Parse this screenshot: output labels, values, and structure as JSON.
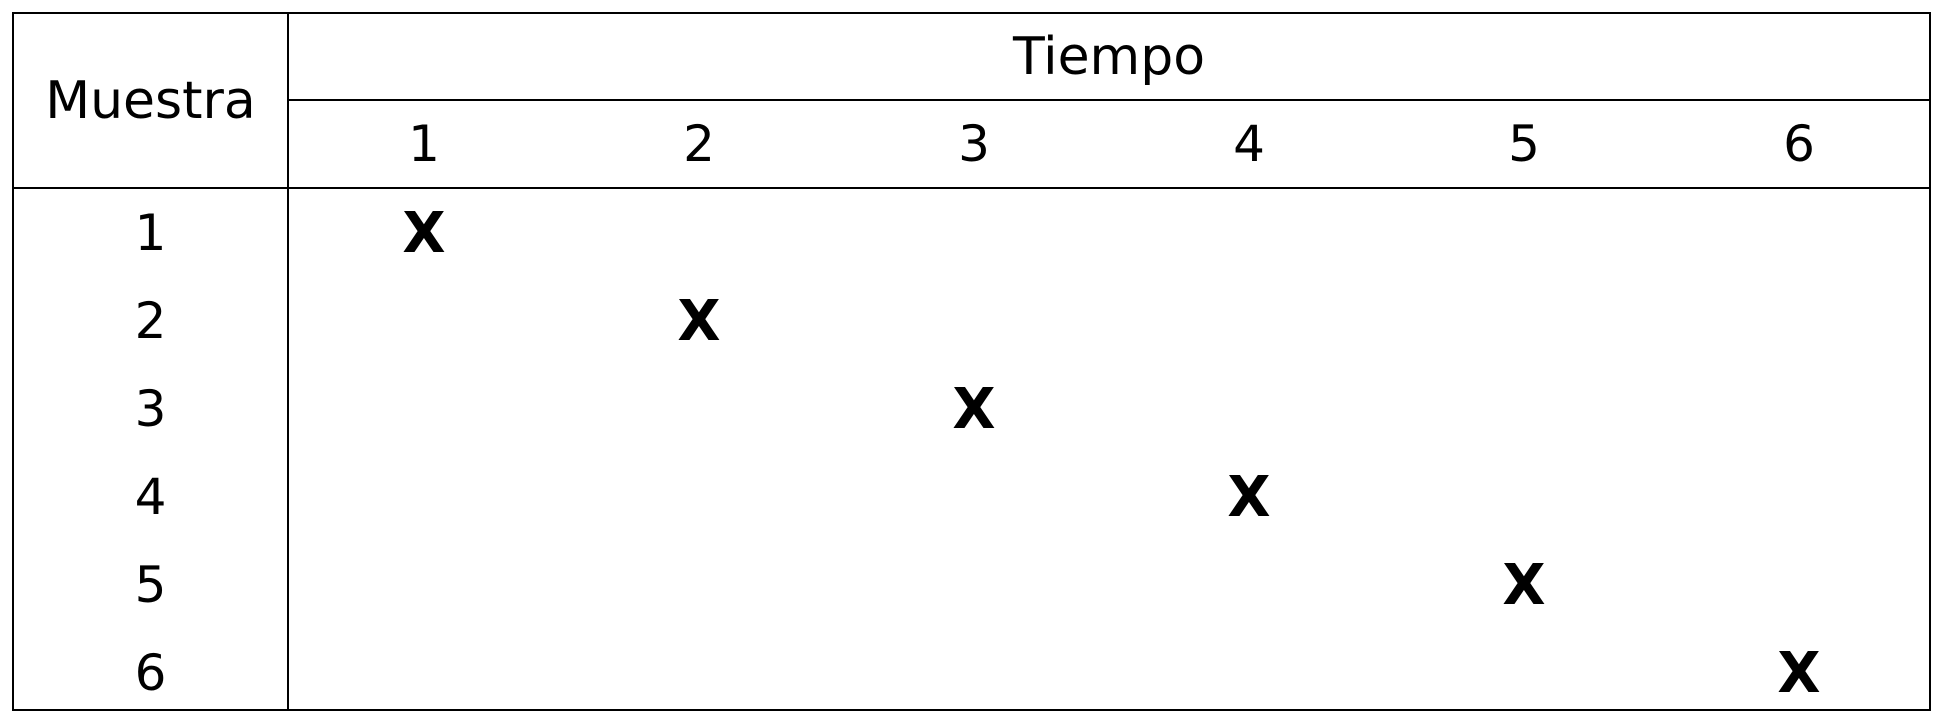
{
  "table": {
    "header_row_label": "Muestra",
    "header_time_label": "Tiempo",
    "time_columns": [
      "1",
      "2",
      "3",
      "4",
      "5",
      "6"
    ],
    "rows": [
      {
        "label": "1",
        "marks": [
          "X",
          "",
          "",
          "",
          "",
          ""
        ]
      },
      {
        "label": "2",
        "marks": [
          "",
          "X",
          "",
          "",
          "",
          ""
        ]
      },
      {
        "label": "3",
        "marks": [
          "",
          "",
          "X",
          "",
          "",
          ""
        ]
      },
      {
        "label": "4",
        "marks": [
          "",
          "",
          "",
          "X",
          "",
          ""
        ]
      },
      {
        "label": "5",
        "marks": [
          "",
          "",
          "",
          "",
          "X",
          ""
        ]
      },
      {
        "label": "6",
        "marks": [
          "",
          "",
          "",
          "",
          "",
          "X"
        ]
      }
    ]
  }
}
